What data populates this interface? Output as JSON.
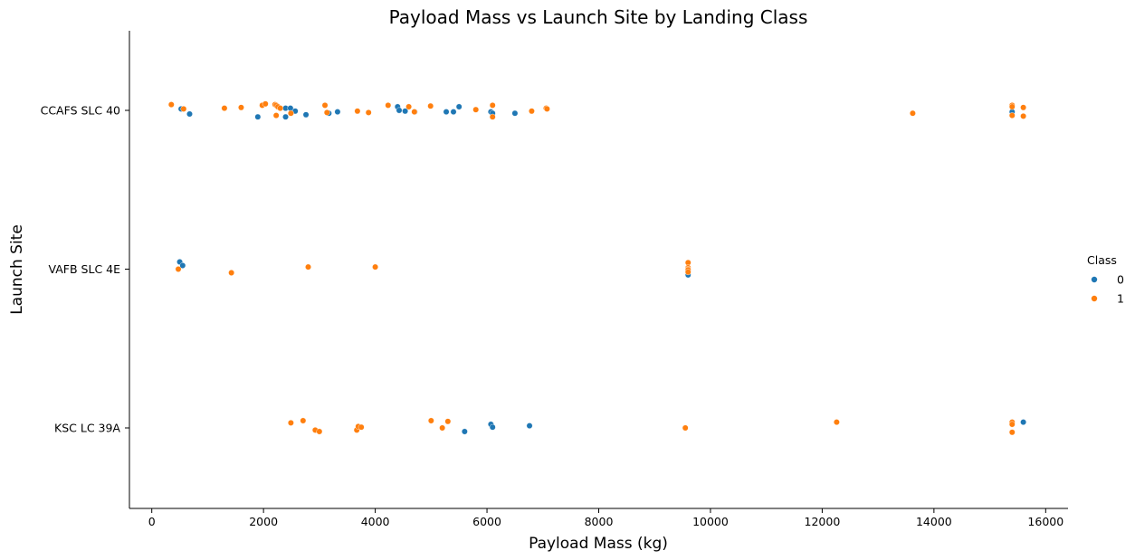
{
  "chart_data": {
    "type": "scatter",
    "title": "Payload Mass vs Launch Site by Landing Class",
    "xlabel": "Payload Mass (kg)",
    "ylabel": "Launch Site",
    "xlim": [
      -400,
      16400
    ],
    "x_ticks": [
      "0",
      "2000",
      "4000",
      "6000",
      "8000",
      "10000",
      "12000",
      "14000",
      "16000"
    ],
    "x_tick_values": [
      0,
      2000,
      4000,
      6000,
      8000,
      10000,
      12000,
      14000,
      16000
    ],
    "categories": [
      "CCAFS SLC 40",
      "VAFB SLC 4E",
      "KSC LC 39A"
    ],
    "grid": false,
    "legend": {
      "title": "Class",
      "placement": "right",
      "entries": [
        {
          "label": "0",
          "color": "#1f77b4"
        },
        {
          "label": "1",
          "color": "#ff7f0e"
        }
      ]
    },
    "series": [
      {
        "name": "0",
        "color": "#1f77b4",
        "points": [
          {
            "x": 525,
            "site": "CCAFS SLC 40",
            "jitter": 0.02
          },
          {
            "x": 677,
            "site": "CCAFS SLC 40",
            "jitter": -0.05
          },
          {
            "x": 1898,
            "site": "CCAFS SLC 40",
            "jitter": -0.09
          },
          {
            "x": 2395,
            "site": "CCAFS SLC 40",
            "jitter": 0.03
          },
          {
            "x": 2482,
            "site": "CCAFS SLC 40",
            "jitter": 0.03
          },
          {
            "x": 2568,
            "site": "CCAFS SLC 40",
            "jitter": -0.01
          },
          {
            "x": 2395,
            "site": "CCAFS SLC 40",
            "jitter": -0.09
          },
          {
            "x": 2760,
            "site": "CCAFS SLC 40",
            "jitter": -0.06
          },
          {
            "x": 3170,
            "site": "CCAFS SLC 40",
            "jitter": -0.04
          },
          {
            "x": 3325,
            "site": "CCAFS SLC 40",
            "jitter": -0.02
          },
          {
            "x": 4400,
            "site": "CCAFS SLC 40",
            "jitter": 0.05
          },
          {
            "x": 4428,
            "site": "CCAFS SLC 40",
            "jitter": 0.0
          },
          {
            "x": 4535,
            "site": "CCAFS SLC 40",
            "jitter": -0.01
          },
          {
            "x": 4707,
            "site": "CCAFS SLC 40",
            "jitter": -0.02
          },
          {
            "x": 5271,
            "site": "CCAFS SLC 40",
            "jitter": -0.02
          },
          {
            "x": 5400,
            "site": "CCAFS SLC 40",
            "jitter": -0.02
          },
          {
            "x": 5500,
            "site": "CCAFS SLC 40",
            "jitter": 0.05
          },
          {
            "x": 6070,
            "site": "CCAFS SLC 40",
            "jitter": -0.02
          },
          {
            "x": 6100,
            "site": "CCAFS SLC 40",
            "jitter": -0.04
          },
          {
            "x": 6500,
            "site": "CCAFS SLC 40",
            "jitter": -0.04
          },
          {
            "x": 15400,
            "site": "CCAFS SLC 40",
            "jitter": -0.02
          },
          {
            "x": 500,
            "site": "VAFB SLC 4E",
            "jitter": 0.1
          },
          {
            "x": 553,
            "site": "VAFB SLC 4E",
            "jitter": 0.05
          },
          {
            "x": 9600,
            "site": "VAFB SLC 4E",
            "jitter": -0.08
          },
          {
            "x": 5600,
            "site": "KSC LC 39A",
            "jitter": -0.05
          },
          {
            "x": 6070,
            "site": "KSC LC 39A",
            "jitter": 0.05
          },
          {
            "x": 6100,
            "site": "KSC LC 39A",
            "jitter": 0.01
          },
          {
            "x": 6761,
            "site": "KSC LC 39A",
            "jitter": 0.03
          },
          {
            "x": 15600,
            "site": "KSC LC 39A",
            "jitter": 0.08
          }
        ]
      },
      {
        "name": "1",
        "color": "#ff7f0e",
        "points": [
          {
            "x": 350,
            "site": "CCAFS SLC 40",
            "jitter": 0.08
          },
          {
            "x": 570,
            "site": "CCAFS SLC 40",
            "jitter": 0.02
          },
          {
            "x": 1300,
            "site": "CCAFS SLC 40",
            "jitter": 0.03
          },
          {
            "x": 1600,
            "site": "CCAFS SLC 40",
            "jitter": 0.04
          },
          {
            "x": 1977,
            "site": "CCAFS SLC 40",
            "jitter": 0.07
          },
          {
            "x": 2034,
            "site": "CCAFS SLC 40",
            "jitter": 0.09
          },
          {
            "x": 2205,
            "site": "CCAFS SLC 40",
            "jitter": 0.08
          },
          {
            "x": 2227,
            "site": "CCAFS SLC 40",
            "jitter": 0.07
          },
          {
            "x": 2257,
            "site": "CCAFS SLC 40",
            "jitter": 0.05
          },
          {
            "x": 2300,
            "site": "CCAFS SLC 40",
            "jitter": 0.03
          },
          {
            "x": 2227,
            "site": "CCAFS SLC 40",
            "jitter": -0.07
          },
          {
            "x": 2490,
            "site": "CCAFS SLC 40",
            "jitter": -0.04
          },
          {
            "x": 3100,
            "site": "CCAFS SLC 40",
            "jitter": 0.07
          },
          {
            "x": 3136,
            "site": "CCAFS SLC 40",
            "jitter": -0.03
          },
          {
            "x": 3681,
            "site": "CCAFS SLC 40",
            "jitter": -0.01
          },
          {
            "x": 3880,
            "site": "CCAFS SLC 40",
            "jitter": -0.03
          },
          {
            "x": 4230,
            "site": "CCAFS SLC 40",
            "jitter": 0.07
          },
          {
            "x": 4600,
            "site": "CCAFS SLC 40",
            "jitter": 0.05
          },
          {
            "x": 4700,
            "site": "CCAFS SLC 40",
            "jitter": -0.02
          },
          {
            "x": 4990,
            "site": "CCAFS SLC 40",
            "jitter": 0.06
          },
          {
            "x": 5800,
            "site": "CCAFS SLC 40",
            "jitter": 0.01
          },
          {
            "x": 6100,
            "site": "CCAFS SLC 40",
            "jitter": 0.07
          },
          {
            "x": 6100,
            "site": "CCAFS SLC 40",
            "jitter": -0.09
          },
          {
            "x": 6800,
            "site": "CCAFS SLC 40",
            "jitter": -0.01
          },
          {
            "x": 7060,
            "site": "CCAFS SLC 40",
            "jitter": 0.03
          },
          {
            "x": 7075,
            "site": "CCAFS SLC 40",
            "jitter": 0.02
          },
          {
            "x": 13620,
            "site": "CCAFS SLC 40",
            "jitter": -0.04
          },
          {
            "x": 15400,
            "site": "CCAFS SLC 40",
            "jitter": 0.07
          },
          {
            "x": 15400,
            "site": "CCAFS SLC 40",
            "jitter": 0.05
          },
          {
            "x": 15400,
            "site": "CCAFS SLC 40",
            "jitter": -0.07
          },
          {
            "x": 15600,
            "site": "CCAFS SLC 40",
            "jitter": 0.04
          },
          {
            "x": 15600,
            "site": "CCAFS SLC 40",
            "jitter": -0.08
          },
          {
            "x": 475,
            "site": "VAFB SLC 4E",
            "jitter": 0.0
          },
          {
            "x": 1425,
            "site": "VAFB SLC 4E",
            "jitter": -0.05
          },
          {
            "x": 2800,
            "site": "VAFB SLC 4E",
            "jitter": 0.03
          },
          {
            "x": 4000,
            "site": "VAFB SLC 4E",
            "jitter": 0.03
          },
          {
            "x": 9600,
            "site": "VAFB SLC 4E",
            "jitter": 0.09
          },
          {
            "x": 9600,
            "site": "VAFB SLC 4E",
            "jitter": 0.02
          },
          {
            "x": 9600,
            "site": "VAFB SLC 4E",
            "jitter": 0.0
          },
          {
            "x": 9600,
            "site": "VAFB SLC 4E",
            "jitter": -0.01
          },
          {
            "x": 9600,
            "site": "VAFB SLC 4E",
            "jitter": -0.04
          },
          {
            "x": 2490,
            "site": "KSC LC 39A",
            "jitter": 0.07
          },
          {
            "x": 2708,
            "site": "KSC LC 39A",
            "jitter": 0.1
          },
          {
            "x": 2926,
            "site": "KSC LC 39A",
            "jitter": -0.03
          },
          {
            "x": 3000,
            "site": "KSC LC 39A",
            "jitter": -0.05
          },
          {
            "x": 3669,
            "site": "KSC LC 39A",
            "jitter": -0.03
          },
          {
            "x": 3696,
            "site": "KSC LC 39A",
            "jitter": 0.02
          },
          {
            "x": 3750,
            "site": "KSC LC 39A",
            "jitter": 0.01
          },
          {
            "x": 5000,
            "site": "KSC LC 39A",
            "jitter": 0.1
          },
          {
            "x": 5200,
            "site": "KSC LC 39A",
            "jitter": 0.0
          },
          {
            "x": 5300,
            "site": "KSC LC 39A",
            "jitter": 0.09
          },
          {
            "x": 9550,
            "site": "KSC LC 39A",
            "jitter": 0.0
          },
          {
            "x": 12259,
            "site": "KSC LC 39A",
            "jitter": 0.08
          },
          {
            "x": 15400,
            "site": "KSC LC 39A",
            "jitter": 0.08
          },
          {
            "x": 15400,
            "site": "KSC LC 39A",
            "jitter": 0.05
          },
          {
            "x": 15400,
            "site": "KSC LC 39A",
            "jitter": -0.06
          }
        ]
      }
    ]
  }
}
